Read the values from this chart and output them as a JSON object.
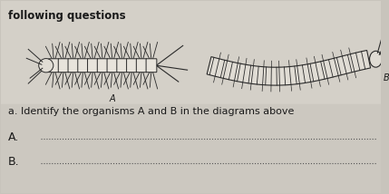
{
  "background_color": "#c8c4bc",
  "top_strip_color": "#c0bbb3",
  "title_text": "following questions",
  "question_text": "a. Identify the organisms A and B in the diagrams above",
  "label_A": "A.",
  "label_B": "B.",
  "text_color": "#1a1a1a",
  "font_size_title": 8.5,
  "font_size_question": 8,
  "font_size_labels": 9,
  "organism_area_color": "#d8d4cc"
}
